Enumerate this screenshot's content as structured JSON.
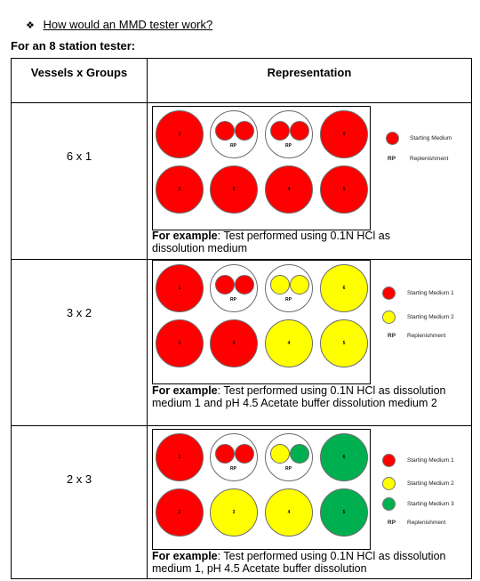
{
  "heading": {
    "bullet": "❖",
    "text": "How would an MMD tester work?"
  },
  "subheading": "For an 8 station tester:",
  "table": {
    "headers": [
      "Vessels x Groups",
      "Representation"
    ],
    "rows": [
      {
        "group": "6 x 1",
        "vessels": [
          "1",
          "2",
          "3",
          "4",
          "5",
          "6"
        ],
        "rp_label": "RP",
        "legend": [
          {
            "color": "#ff0000",
            "label": "Starting Medium"
          },
          {
            "color": "",
            "prefix": "RP",
            "label": "Replenishment"
          }
        ],
        "example_label": "For example",
        "example_text": ": Test performed using 0.1N HCl as dissolution medium"
      },
      {
        "group": "3 x 2",
        "vessels": [
          "1",
          "2",
          "3",
          "4",
          "5",
          "6"
        ],
        "rp_label": "RP",
        "legend": [
          {
            "color": "#ff0000",
            "label": "Starting Medium 1"
          },
          {
            "color": "#ffff00",
            "label": "Starting Medium 2"
          },
          {
            "color": "",
            "prefix": "RP",
            "label": "Replenishment"
          }
        ],
        "example_label": "For example",
        "example_text": ": Test performed using 0.1N HCl as dissolution medium 1 and pH 4.5 Acetate buffer dissolution medium 2"
      },
      {
        "group": "2 x 3",
        "vessels": [
          "1",
          "2",
          "3",
          "4",
          "5",
          "6"
        ],
        "rp_label": "RP",
        "legend": [
          {
            "color": "#ff0000",
            "label": "Starting Medium 1"
          },
          {
            "color": "#ffff00",
            "label": "Starting Medium 2"
          },
          {
            "color": "#00b050",
            "label": "Starting Medium 3"
          },
          {
            "color": "",
            "prefix": "RP",
            "label": "Replenishment"
          }
        ],
        "example_label": "For example",
        "example_text": ": Test performed using 0.1N HCl as dissolution medium 1, pH 4.5 Acetate buffer dissolution"
      }
    ]
  }
}
